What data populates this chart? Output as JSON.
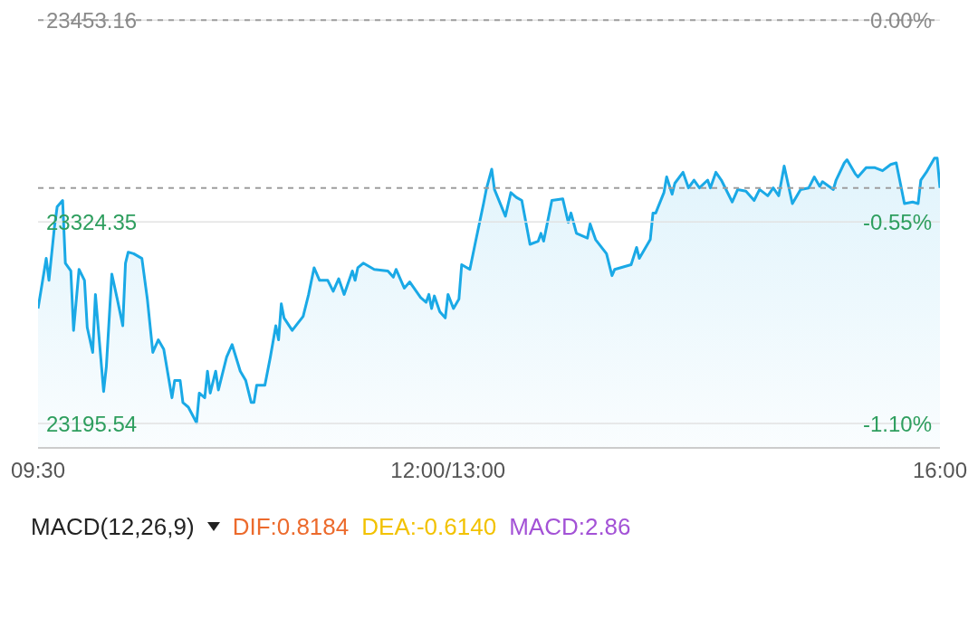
{
  "chart_data": [
    {
      "type": "area",
      "categories": [
        "09:30",
        null,
        null,
        null,
        null,
        null,
        null,
        null,
        null,
        null,
        null,
        null,
        null,
        null,
        null,
        null,
        null,
        null,
        null,
        null,
        null,
        null,
        null,
        null,
        null,
        null,
        null,
        null,
        null,
        null,
        null,
        null,
        null,
        null,
        null,
        null,
        null,
        null,
        null,
        null,
        null,
        null,
        null,
        null,
        null,
        null,
        null,
        null,
        null,
        null,
        null,
        null,
        null,
        null,
        null,
        null,
        null,
        null,
        null,
        null,
        null,
        null,
        null,
        null,
        null,
        null,
        null,
        null,
        null,
        null,
        null,
        null,
        null,
        null,
        null,
        null,
        null,
        null,
        null,
        null,
        null,
        null,
        null,
        null,
        null,
        null,
        null,
        null,
        null,
        null,
        null,
        null,
        null,
        null,
        null,
        null,
        null,
        null,
        null,
        null,
        null,
        null,
        null,
        null,
        null,
        null,
        null,
        null,
        null,
        null,
        null,
        null,
        null,
        null,
        null,
        null,
        null,
        null,
        null,
        null,
        null,
        null,
        null,
        null,
        null,
        null,
        null,
        null,
        null,
        null,
        null,
        null,
        null,
        null,
        null,
        null,
        null,
        null,
        null,
        null,
        null,
        null,
        null,
        null,
        null,
        null,
        null,
        null,
        null,
        null,
        "12:00/13:00",
        null,
        null,
        null,
        null,
        null,
        null,
        null,
        null,
        null,
        null,
        null,
        null,
        null,
        null,
        null,
        null,
        null,
        null,
        null,
        null,
        null,
        null,
        null,
        null,
        null,
        null,
        null,
        null,
        null,
        null,
        null,
        null,
        null,
        null,
        null,
        null,
        null,
        null,
        null,
        null,
        null,
        null,
        null,
        null,
        null,
        null,
        null,
        null,
        null,
        null,
        null,
        null,
        null,
        null,
        null,
        null,
        null,
        null,
        null,
        null,
        null,
        null,
        null,
        null,
        null,
        null,
        null,
        null,
        null,
        null,
        null,
        null,
        null,
        null,
        null,
        null,
        null,
        null,
        null,
        null,
        null,
        null,
        null,
        null,
        null,
        null,
        null,
        null,
        null,
        null,
        null,
        null,
        null,
        null,
        null,
        null,
        null,
        null,
        null,
        null,
        null,
        null,
        null,
        null,
        null,
        null,
        null,
        null,
        null,
        null,
        null,
        null,
        null,
        null,
        null,
        null,
        null,
        null,
        null,
        null,
        null,
        null,
        null,
        null,
        null,
        null,
        null,
        null,
        null,
        null,
        null,
        null,
        null,
        null,
        null,
        null,
        null,
        null,
        null,
        null,
        null,
        null,
        null,
        null,
        null,
        null,
        null,
        null,
        null,
        null,
        null,
        null,
        null,
        null,
        null,
        null,
        null,
        null,
        null,
        null,
        null,
        null,
        null,
        null,
        null,
        null,
        null,
        null,
        null,
        null,
        null,
        null,
        null,
        null,
        null,
        null,
        null,
        null,
        null,
        "16:00"
      ],
      "series": [
        {
          "color": "#1aa9e6",
          "values": [
            23269,
            null,
            null,
            23301,
            23287,
            null,
            23321,
            23334,
            null,
            23338,
            23298,
            null,
            23293,
            23255,
            null,
            23294,
            null,
            23287,
            23257,
            null,
            23241,
            23278,
            null,
            null,
            23216,
            23232,
            null,
            23291,
            null,
            23275,
            null,
            23258,
            23298,
            23305,
            null,
            23304,
            null,
            null,
            23301,
            null,
            23275,
            null,
            23241,
            null,
            23249,
            null,
            23243,
            null,
            null,
            23212,
            23223,
            null,
            23223,
            23209,
            null,
            23206,
            null,
            null,
            23196,
            23215,
            null,
            23212,
            23229,
            23215,
            null,
            23229,
            23217,
            null,
            null,
            23238,
            null,
            23246,
            null,
            null,
            23229,
            null,
            23223,
            null,
            23209,
            23209,
            23220,
            null,
            null,
            23220,
            null,
            23238,
            null,
            23258,
            23249,
            23272,
            23263,
            null,
            null,
            23255,
            null,
            null,
            null,
            23264,
            null,
            23278,
            null,
            23295,
            null,
            23287,
            null,
            null,
            23287,
            null,
            23280,
            null,
            23288,
            null,
            23278,
            null,
            null,
            23293,
            23287,
            23295,
            null,
            23298,
            null,
            null,
            null,
            23294,
            null,
            null,
            null,
            null,
            23293,
            null,
            23289,
            23294,
            null,
            null,
            23282,
            null,
            23286,
            null,
            null,
            null,
            23276,
            null,
            23273,
            23278,
            23269,
            23277,
            null,
            23267,
            null,
            23263,
            23278,
            null,
            23269,
            null,
            23275,
            23297,
            null,
            null,
            23294,
            null,
            23311,
            null,
            null,
            23336,
            23345,
            null,
            23358,
            23345,
            null,
            null,
            null,
            23328,
            null,
            23343,
            null,
            23340,
            null,
            23338,
            null,
            null,
            23310,
            null,
            null,
            23312,
            23317,
            23312,
            null,
            null,
            23338,
            null,
            null,
            null,
            23339,
            null,
            23324,
            23330,
            null,
            23317,
            null,
            null,
            null,
            23314,
            23323,
            null,
            23313,
            null,
            null,
            null,
            23304,
            null,
            23290,
            23294,
            null,
            null,
            null,
            null,
            null,
            23297,
            null,
            23308,
            23301,
            null,
            null,
            null,
            23313,
            23330,
            23330,
            null,
            null,
            23343,
            23353,
            null,
            23342,
            23349,
            null,
            null,
            23356,
            null,
            23346,
            null,
            23351,
            null,
            23346,
            null,
            null,
            23351,
            23346,
            null,
            23356,
            null,
            23351,
            null,
            null,
            null,
            23337,
            null,
            23345,
            null,
            null,
            23344,
            null,
            null,
            23338,
            null,
            23345,
            null,
            null,
            23341,
            null,
            23346,
            null,
            23341,
            null,
            23360,
            null,
            null,
            23336,
            null,
            null,
            23345,
            null,
            null,
            23346,
            null,
            23353,
            null,
            23347,
            23350,
            null,
            null,
            null,
            23345,
            23351,
            null,
            null,
            23362,
            23364,
            null,
            null,
            23355,
            23353,
            null,
            null,
            23359,
            null,
            null,
            23359,
            null,
            null,
            23357,
            null,
            null,
            23361,
            null,
            23362,
            null,
            null,
            23336,
            null,
            null,
            23337,
            null,
            23336,
            23351,
            null,
            23356,
            null,
            null,
            23365,
            23365,
            23346
          ]
        }
      ],
      "ylim": [
        23180,
        23466
      ],
      "yticks": [
        23453.16,
        23324.35,
        23195.54
      ],
      "y2lim": [
        -1.1647,
        0.0547
      ],
      "y2ticks": [
        {
          "value": 0,
          "label": "0.00%"
        },
        {
          "value": -0.55,
          "label": "-0.55%"
        },
        {
          "value": -1.1,
          "label": "-1.10%"
        }
      ],
      "ref_lines": [
        {
          "axis": "y",
          "value": 23453.16,
          "color": "#9e9e9e",
          "line_style": "dashed"
        },
        {
          "axis": "y",
          "value": 23346,
          "color": "#9e9e9e",
          "line_style": "dashed"
        }
      ],
      "grid": "y",
      "legend": false,
      "marker": "none",
      "line_style": "solid"
    },
    {
      "type": "other",
      "title": "MACD(12,26,9)",
      "annotations": [
        "DIF:0.8184",
        "DEA:-0.6140",
        "MACD:2.86"
      ]
    }
  ]
}
